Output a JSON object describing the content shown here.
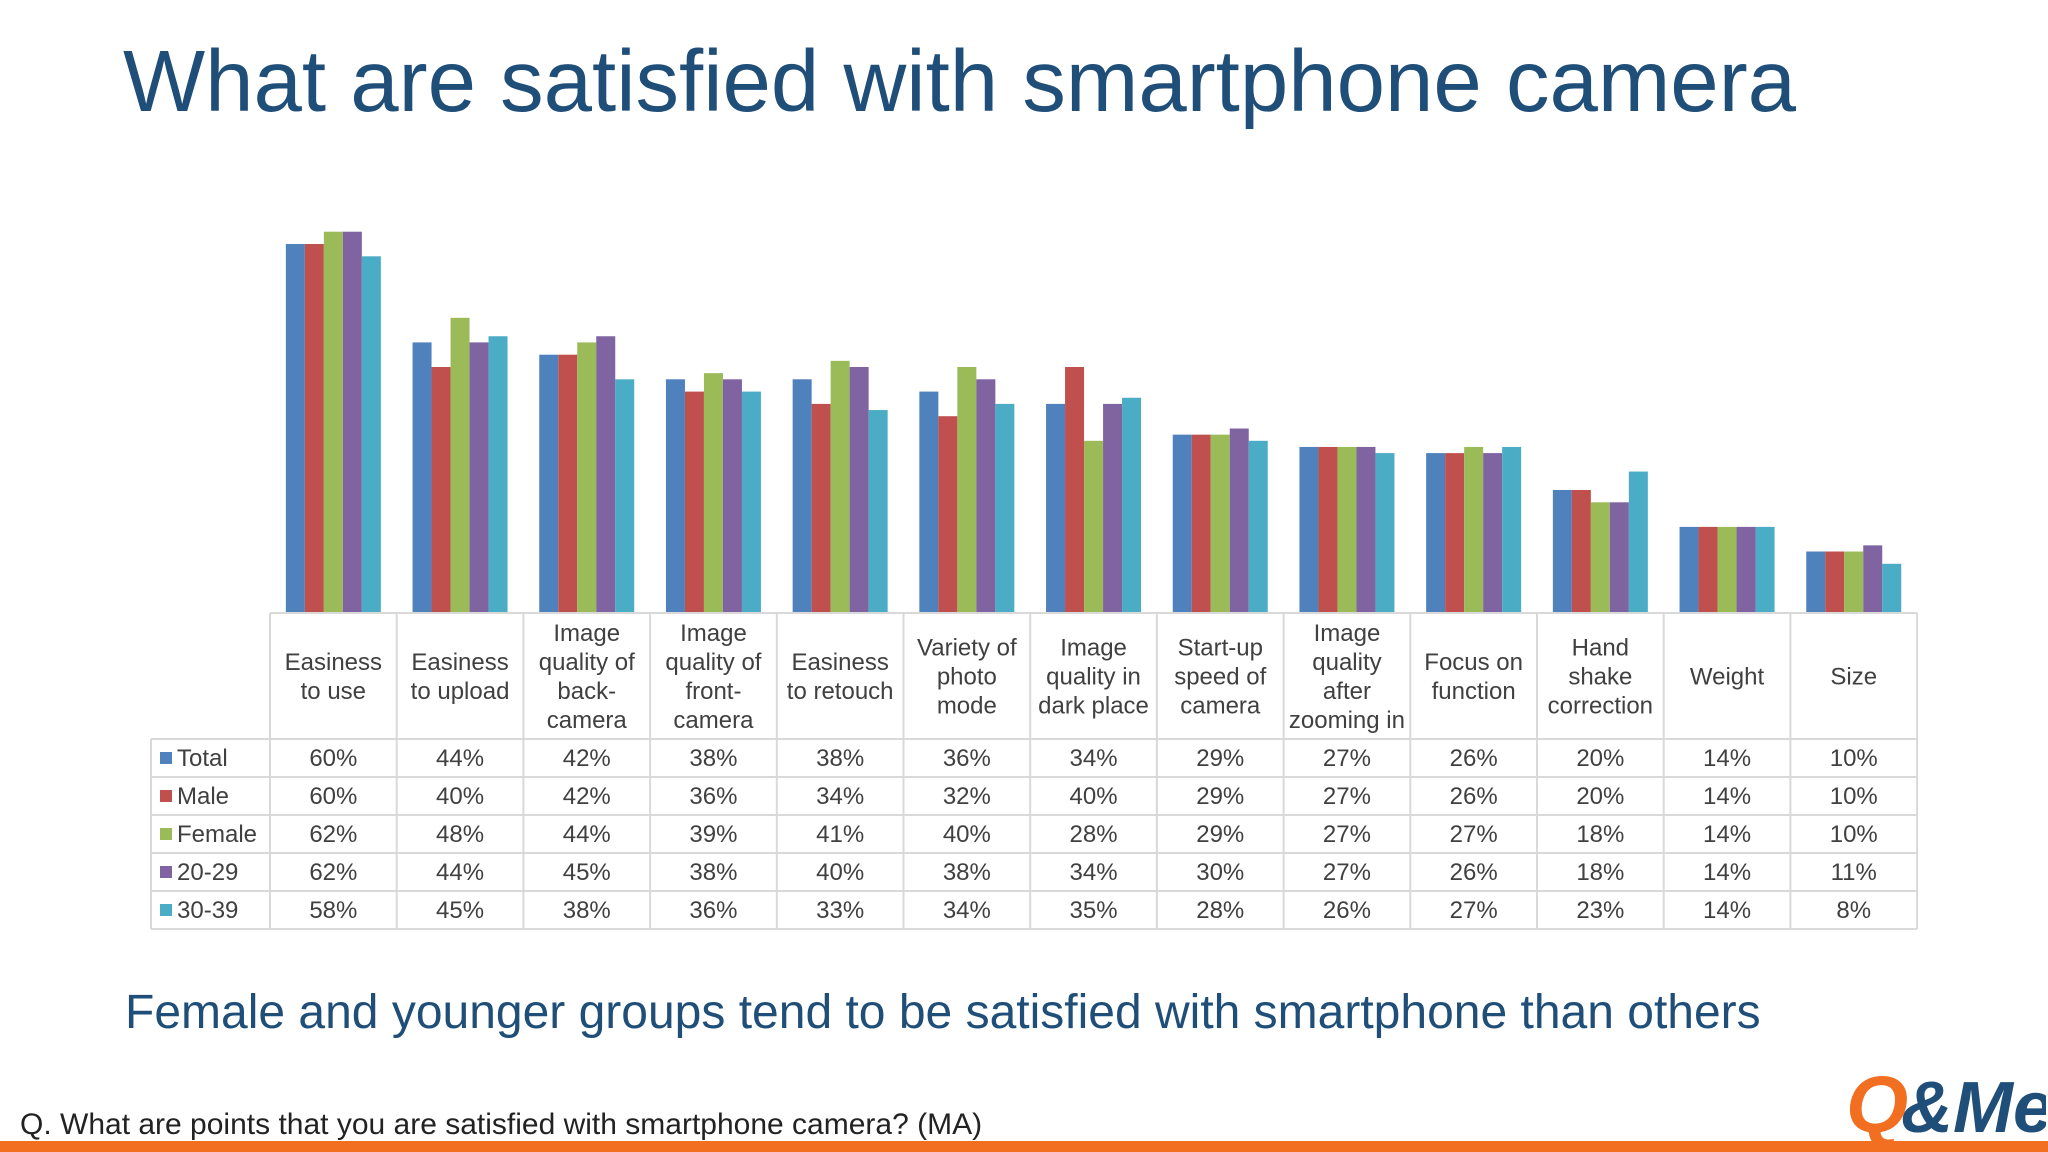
{
  "page": {
    "title": "What are satisfied with smartphone camera",
    "subtitle": "Female and younger groups tend to be satisfied with smartphone than others",
    "question": "Q. What are points that you are satisfied with smartphone camera? (MA)",
    "logo_text": "Q&Me",
    "colors": {
      "title": "#1f4e79",
      "accent_bar": "#f26f21",
      "logo_orange": "#f26f21",
      "logo_blue": "#1f4e79"
    }
  },
  "chart_data": {
    "type": "bar",
    "title": "",
    "xlabel": "",
    "ylabel": "",
    "ylim": [
      0,
      65
    ],
    "grid": false,
    "legend": "data table rows",
    "categories": [
      [
        "Easiness",
        "to use"
      ],
      [
        "Easiness",
        "to upload"
      ],
      [
        "Image",
        "quality of",
        "back-",
        "camera"
      ],
      [
        "Image",
        "quality of",
        "front-",
        "camera"
      ],
      [
        "Easiness",
        "to retouch"
      ],
      [
        "Variety of",
        "photo",
        "mode"
      ],
      [
        "Image",
        "quality in",
        "dark place"
      ],
      [
        "Start-up",
        "speed of",
        "camera"
      ],
      [
        "Image",
        "quality",
        "after",
        "zooming in"
      ],
      [
        "Focus on",
        "function"
      ],
      [
        "Hand",
        "shake",
        "correction"
      ],
      [
        "Weight"
      ],
      [
        "Size"
      ]
    ],
    "series": [
      {
        "name": "Total",
        "color": "#4f81bd",
        "values": [
          60,
          44,
          42,
          38,
          38,
          36,
          34,
          29,
          27,
          26,
          20,
          14,
          10
        ]
      },
      {
        "name": "Male",
        "color": "#c0504d",
        "values": [
          60,
          40,
          42,
          36,
          34,
          32,
          40,
          29,
          27,
          26,
          20,
          14,
          10
        ]
      },
      {
        "name": "Female",
        "color": "#9bbb59",
        "values": [
          62,
          48,
          44,
          39,
          41,
          40,
          28,
          29,
          27,
          27,
          18,
          14,
          10
        ]
      },
      {
        "name": "20-29",
        "color": "#8064a2",
        "values": [
          62,
          44,
          45,
          38,
          40,
          38,
          34,
          30,
          27,
          26,
          18,
          14,
          11
        ]
      },
      {
        "name": "30-39",
        "color": "#4bacc6",
        "values": [
          58,
          45,
          38,
          36,
          33,
          34,
          35,
          28,
          26,
          27,
          23,
          14,
          8
        ]
      }
    ]
  }
}
